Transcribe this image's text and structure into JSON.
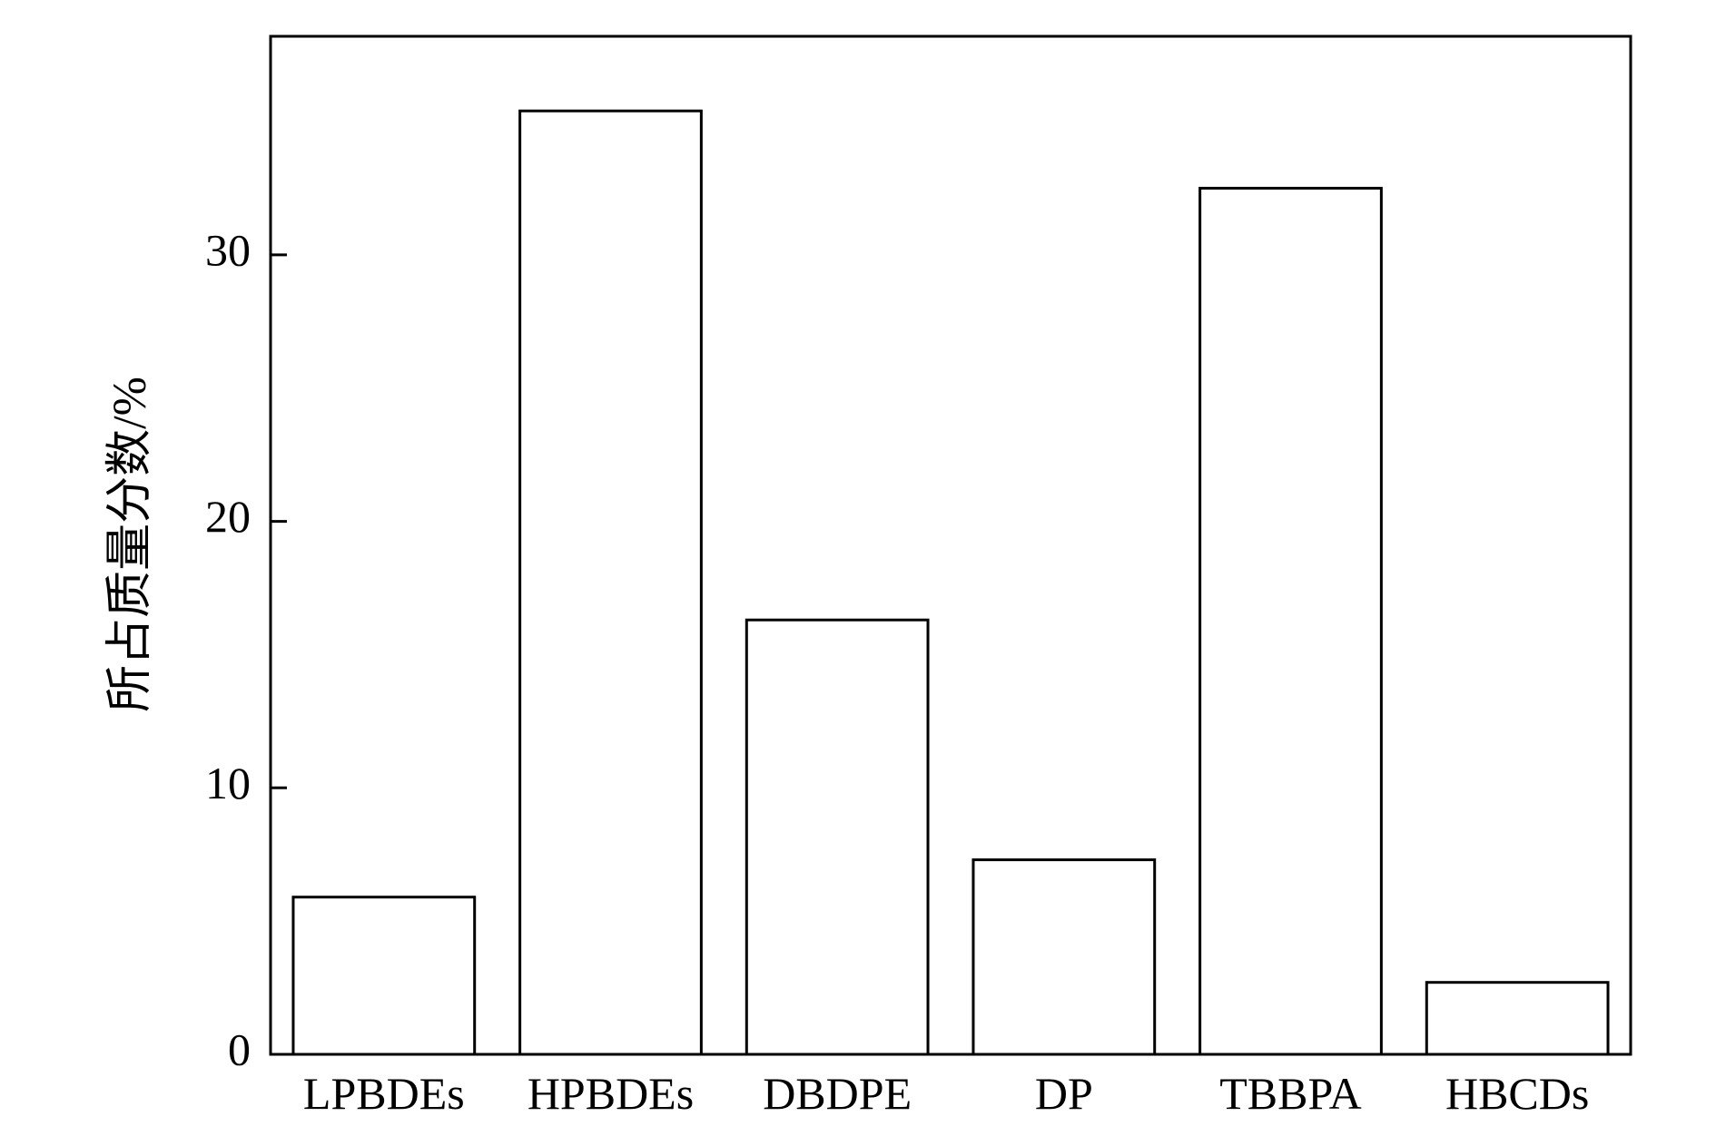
{
  "chart_data": {
    "type": "bar",
    "title": "",
    "xlabel": "",
    "ylabel": "所占质量分数/%",
    "categories": [
      "LPBDEs",
      "HPBDEs",
      "DBDPE",
      "DP",
      "TBBPA",
      "HBCDs"
    ],
    "values": [
      5.9,
      35.4,
      16.3,
      7.3,
      32.5,
      2.7
    ],
    "ylim": [
      0,
      38.2
    ],
    "yticks": [
      0,
      10,
      20,
      30
    ],
    "grid": false,
    "legend": "none",
    "bar_fill": "#ffffff",
    "bar_stroke": "#000000"
  }
}
